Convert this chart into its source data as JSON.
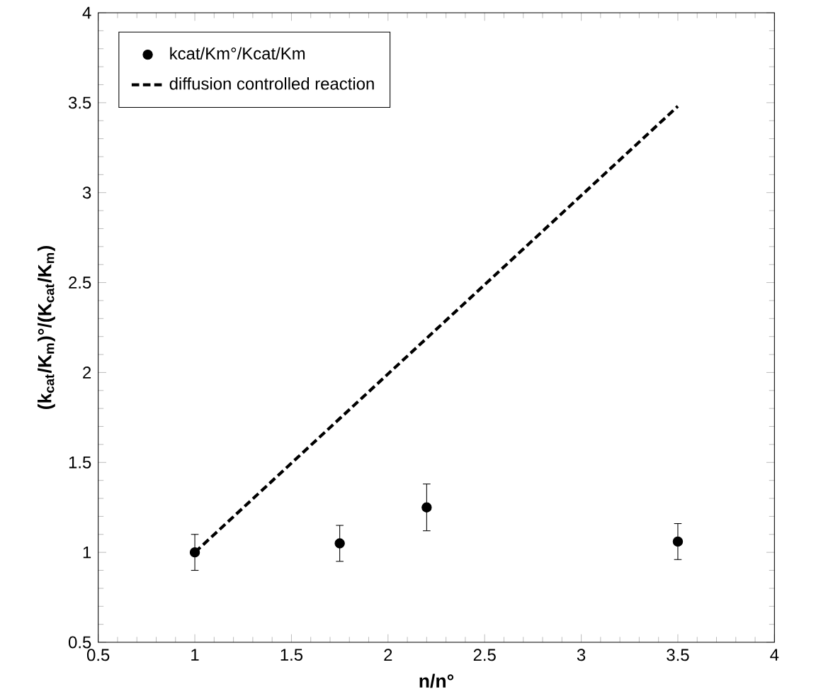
{
  "chart_data": {
    "type": "scatter",
    "xlabel": "n/n°",
    "ylabel": "(k$_{cat}$/K$_{m}$)°/(K$_{cat}$/K$_{m}$)",
    "xlim": [
      0.5,
      4
    ],
    "ylim": [
      0.5,
      4
    ],
    "xticks": [
      0.5,
      1,
      1.5,
      2,
      2.5,
      3,
      3.5,
      4
    ],
    "yticks": [
      0.5,
      1,
      1.5,
      2,
      2.5,
      3,
      3.5,
      4
    ],
    "legend": "top left",
    "grid": false,
    "series": [
      {
        "name": "kcat/Km°/Kcat/Km",
        "color": "#000000",
        "marker": "circle",
        "x": [
          1,
          1.75,
          2.2,
          3.5
        ],
        "values": [
          1.0,
          1.05,
          1.25,
          1.06
        ],
        "errors": [
          0.1,
          0.1,
          0.13,
          0.1
        ]
      },
      {
        "name": "diffusion controlled reaction",
        "type": "line",
        "color": "#000000",
        "marker": "none",
        "line_style": "dashed",
        "x": [
          1,
          3.5
        ],
        "values": [
          1,
          3.48
        ]
      }
    ]
  }
}
